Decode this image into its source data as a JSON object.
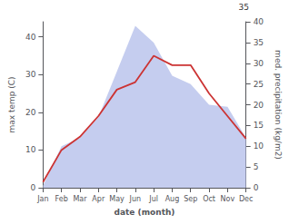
{
  "chart_data": {
    "type": "line",
    "categories": [
      "Jan",
      "Feb",
      "Mar",
      "Apr",
      "May",
      "Jun",
      "Jul",
      "Aug",
      "Sep",
      "Oct",
      "Nov",
      "Dec"
    ],
    "xlabel": "date (month)",
    "ylabel": "max temp (C)",
    "y2label": "med. precipitation (kg/m2)",
    "annotations": [
      "35"
    ],
    "ylim": [
      0,
      44
    ],
    "yticks": [
      0,
      10,
      20,
      30,
      40
    ],
    "y2lim": [
      0,
      40
    ],
    "y2ticks": [
      0,
      5,
      10,
      15,
      20,
      25,
      30,
      35,
      40
    ],
    "grid": false,
    "series": [
      {
        "type": "area",
        "axis": "y2",
        "color": "#bbc4ec",
        "values": [
          0.5,
          10.0,
          12.0,
          17.0,
          28.0,
          39.0,
          35.0,
          27.0,
          25.0,
          20.0,
          19.5,
          12.0
        ]
      },
      {
        "type": "line",
        "color": "#cc3333",
        "values": [
          1.5,
          10.0,
          13.5,
          19.0,
          26.0,
          28.0,
          35.0,
          32.5,
          32.5,
          25.0,
          19.0,
          13.0
        ]
      }
    ]
  }
}
